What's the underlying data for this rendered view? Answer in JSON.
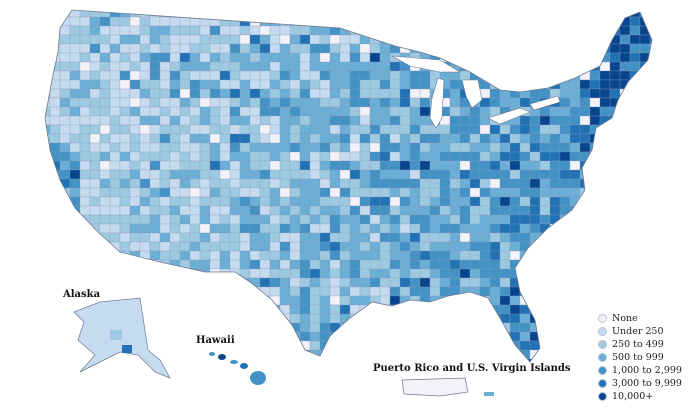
{
  "map": {
    "inset_labels": {
      "alaska": "Alaska",
      "hawaii": "Hawaii",
      "puerto_rico": "Puerto Rico and U.S. Virgin Islands"
    },
    "legend": [
      {
        "label": "None",
        "color": "#f3f2f8"
      },
      {
        "label": "Under 250",
        "color": "#c6dbef"
      },
      {
        "label": "250 to 499",
        "color": "#9ecae1"
      },
      {
        "label": "500 to 999",
        "color": "#6baed6"
      },
      {
        "label": "1,000 to 2,999",
        "color": "#4292c6"
      },
      {
        "label": "3,000 to 9,999",
        "color": "#2171b5"
      },
      {
        "label": "10,000+",
        "color": "#08458f"
      }
    ]
  }
}
